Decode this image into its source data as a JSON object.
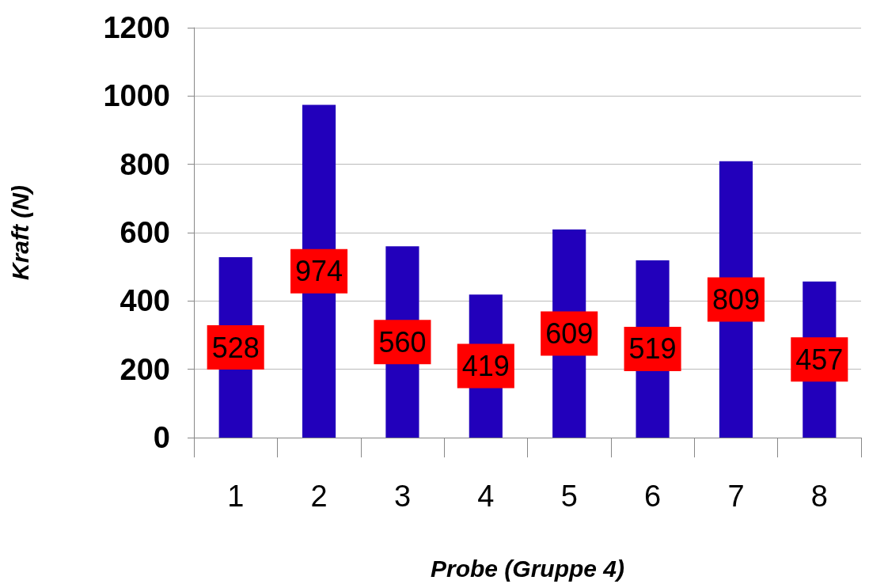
{
  "chart_data": {
    "type": "bar",
    "xlabel": "Probe (Gruppe 4)",
    "ylabel": "Kraft (N)",
    "categories": [
      "1",
      "2",
      "3",
      "4",
      "5",
      "6",
      "7",
      "8"
    ],
    "values": [
      528,
      974,
      560,
      419,
      609,
      519,
      809,
      457
    ],
    "color": "#2200bb",
    "ylim": [
      0,
      1200
    ],
    "yticks": [
      0,
      200,
      400,
      600,
      800,
      1000,
      1200
    ],
    "grid": "y",
    "data_labels": true
  }
}
